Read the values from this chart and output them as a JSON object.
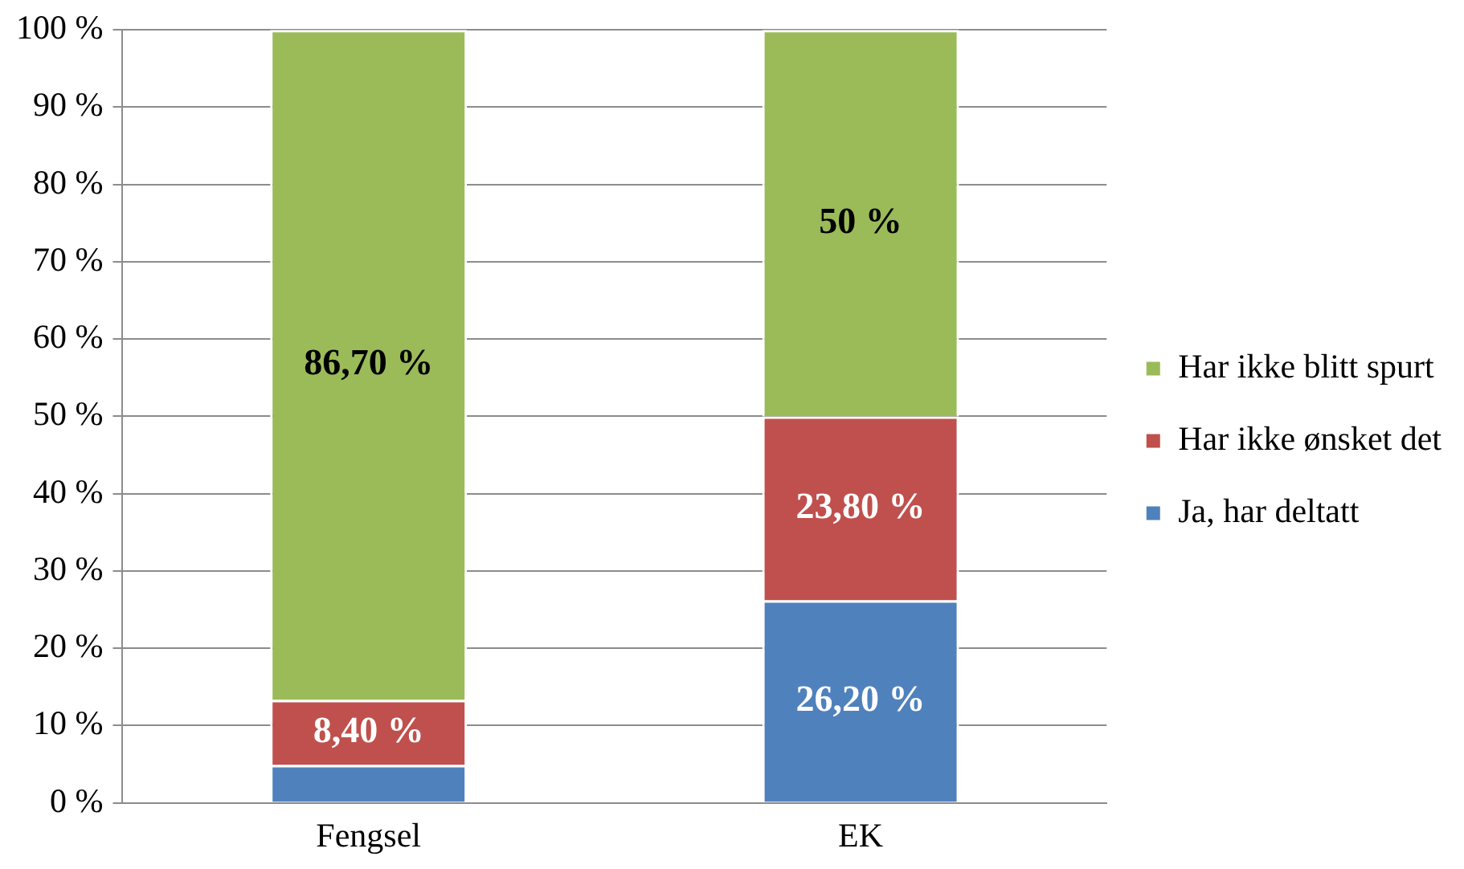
{
  "chart_data": {
    "type": "bar",
    "stacked": true,
    "categories": [
      "Fengsel",
      "EK"
    ],
    "series": [
      {
        "name": "Ja, har deltatt",
        "color": "#4f81bd",
        "values": [
          4.9,
          26.2
        ],
        "value_labels": [
          null,
          "26,20 %"
        ]
      },
      {
        "name": "Har ikke ønsket det",
        "color": "#c0504d",
        "values": [
          8.4,
          23.8
        ],
        "value_labels": [
          "8,40 %",
          "23,80 %"
        ]
      },
      {
        "name": "Har ikke blitt spurt",
        "color": "#9bbb59",
        "values": [
          86.7,
          50
        ],
        "value_labels": [
          "86,70 %",
          "50 %"
        ]
      }
    ],
    "ylim": [
      0,
      100
    ],
    "yticks": [
      {
        "value": 0,
        "label": "0 %"
      },
      {
        "value": 10,
        "label": "10 %"
      },
      {
        "value": 20,
        "label": "20 %"
      },
      {
        "value": 30,
        "label": "30 %"
      },
      {
        "value": 40,
        "label": "40 %"
      },
      {
        "value": 50,
        "label": "50 %"
      },
      {
        "value": 60,
        "label": "60 %"
      },
      {
        "value": 70,
        "label": "70 %"
      },
      {
        "value": 80,
        "label": "80 %"
      },
      {
        "value": 90,
        "label": "90 %"
      },
      {
        "value": 100,
        "label": "100 %"
      }
    ],
    "grid": "y",
    "legend": "right"
  }
}
